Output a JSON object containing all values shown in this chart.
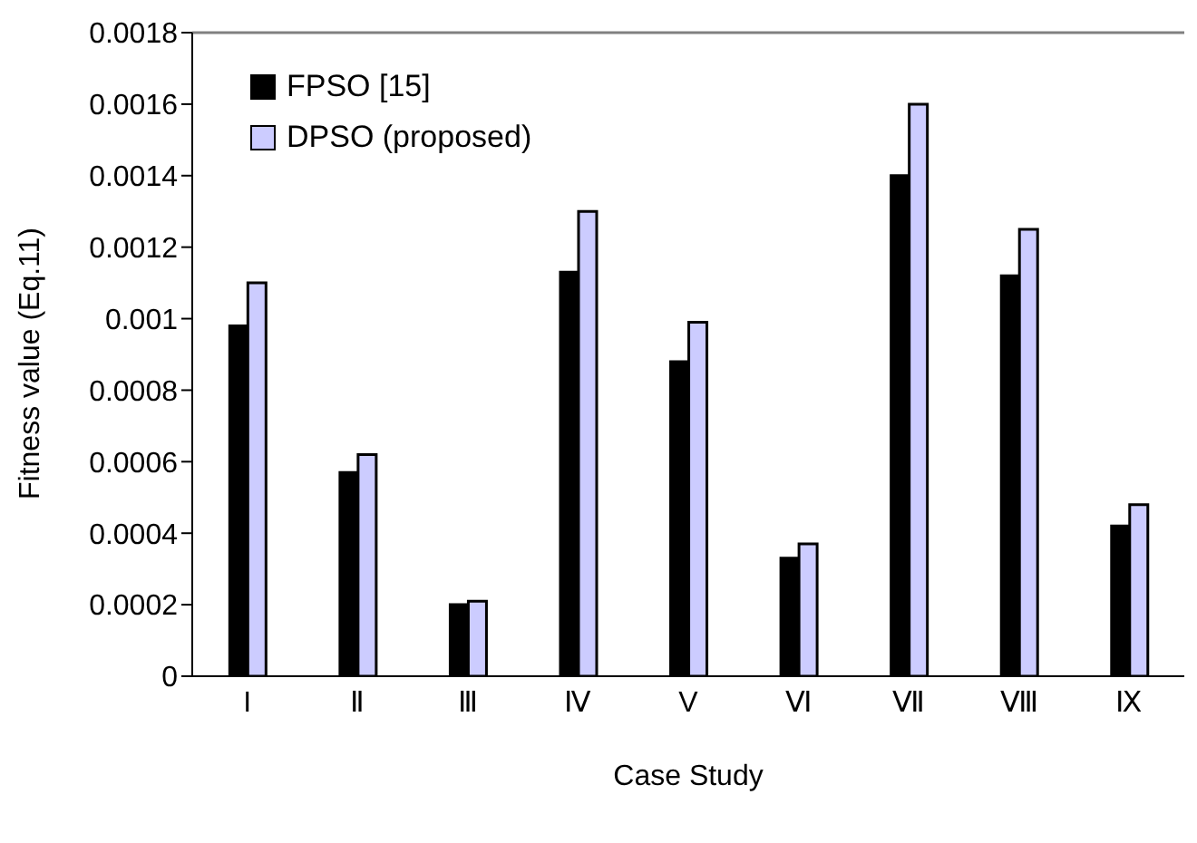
{
  "chart_data": {
    "type": "bar",
    "xlabel": "Case Study",
    "ylabel": "Fitness value (Eq.11)",
    "categories": [
      "I",
      "Ⅱ",
      "Ⅲ",
      "Ⅳ",
      "V",
      "Ⅵ",
      "Ⅶ",
      "Ⅷ",
      "Ⅸ"
    ],
    "series": [
      {
        "name": "FPSO [15]",
        "color": "#000000",
        "values": [
          0.00098,
          0.00057,
          0.0002,
          0.00113,
          0.00088,
          0.00033,
          0.0014,
          0.00112,
          0.00042
        ]
      },
      {
        "name": "DPSO (proposed)",
        "color": "#ccccff",
        "values": [
          0.0011,
          0.00062,
          0.00021,
          0.0013,
          0.00099,
          0.00037,
          0.0016,
          0.00125,
          0.00048
        ]
      }
    ],
    "ylim": [
      0,
      0.0018
    ],
    "yticks": [
      0,
      0.0002,
      0.0004,
      0.0006,
      0.0008,
      0.001,
      0.0012,
      0.0014,
      0.0016,
      0.0018
    ],
    "grid": false,
    "legend": "top left"
  }
}
